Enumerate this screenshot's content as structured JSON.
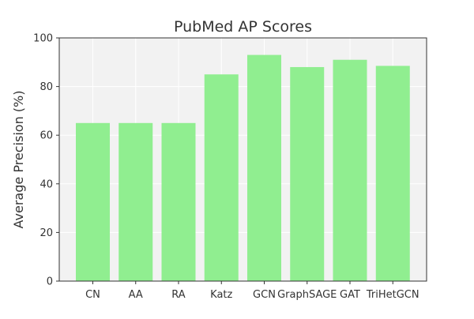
{
  "chart_data": {
    "type": "bar",
    "title": "PubMed AP Scores",
    "xlabel": "",
    "ylabel": "Average Precision (%)",
    "categories": [
      "CN",
      "AA",
      "RA",
      "Katz",
      "GCN",
      "GraphSAGE",
      "GAT",
      "TriHetGCN"
    ],
    "values": [
      65,
      65,
      65,
      85,
      93,
      88,
      91,
      88.5
    ],
    "ylim": [
      0,
      100
    ],
    "yticks": [
      0,
      20,
      40,
      60,
      80,
      100
    ],
    "grid": true,
    "bar_color": "#90ee90",
    "plot_background": "#f2f2f2",
    "grid_color": "#ffffff",
    "text_color": "#333333"
  }
}
